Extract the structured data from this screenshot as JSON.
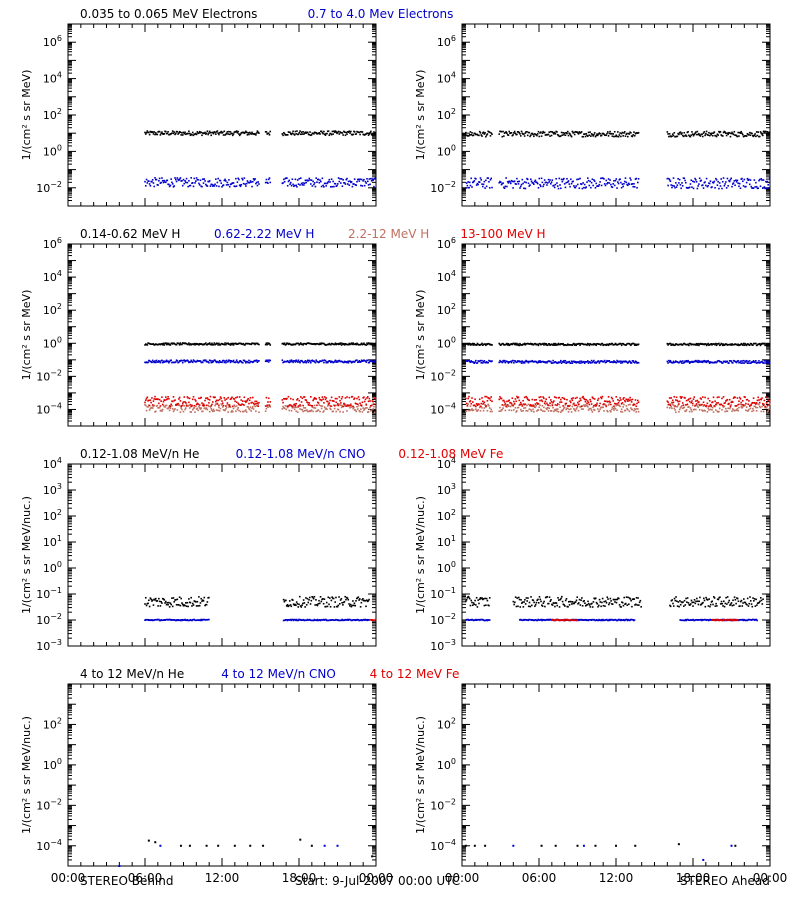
{
  "footer": {
    "left_label": "STEREO Behind",
    "center_label": "Start:  9-Jul-2007 00:00 UTC",
    "right_label": "STEREO Ahead"
  },
  "time_ticks": [
    "00:00",
    "06:00",
    "12:00",
    "18:00",
    "00:00"
  ],
  "colors": {
    "black": "#000000",
    "blue": "#0000cc",
    "brown": "#c07060",
    "red": "#e00000"
  },
  "chart_data": [
    {
      "id": "electrons",
      "type": "scatter",
      "ylabel": "1/(cm² s sr MeV)",
      "y_scale": "log",
      "ylim_exp": [
        -3,
        7
      ],
      "y_tick_exps": [
        -2,
        0,
        2,
        4,
        6
      ],
      "xlabel": "",
      "x_tick_labels": [
        "00:00",
        "06:00",
        "12:00",
        "18:00",
        "00:00"
      ],
      "legend": [
        {
          "text": "0.035 to 0.065 MeV Electrons",
          "color": "#000000"
        },
        {
          "text": "0.7 to 4.0 Mev Electrons",
          "color": "#0000cc"
        }
      ],
      "panels": [
        {
          "spacecraft": "STEREO Behind",
          "series": [
            {
              "name": "0.035 to 0.065 MeV Electrons",
              "color": "#000000",
              "typical_value": 10,
              "spread_exp": 0.12,
              "segments_hours": [
                [
                  6.0,
                  14.9
                ],
                [
                  15.4,
                  15.8
                ],
                [
                  16.7,
                  24.0
                ]
              ]
            },
            {
              "name": "0.7 to 4.0 Mev Electrons",
              "color": "#0000cc",
              "typical_value": 0.02,
              "spread_exp": 0.25,
              "segments_hours": [
                [
                  6.0,
                  14.9
                ],
                [
                  15.4,
                  15.8
                ],
                [
                  16.7,
                  24.0
                ]
              ]
            }
          ]
        },
        {
          "spacecraft": "STEREO Ahead",
          "series": [
            {
              "name": "0.035 to 0.065 MeV Electrons",
              "color": "#000000",
              "typical_value": 9,
              "spread_exp": 0.15,
              "segments_hours": [
                [
                  0.3,
                  2.4
                ],
                [
                  2.9,
                  13.8
                ],
                [
                  16.0,
                  24.0
                ]
              ]
            },
            {
              "name": "0.7 to 4.0 Mev Electrons",
              "color": "#0000cc",
              "typical_value": 0.018,
              "spread_exp": 0.3,
              "segments_hours": [
                [
                  0.3,
                  2.4
                ],
                [
                  2.9,
                  13.8
                ],
                [
                  16.0,
                  24.0
                ]
              ]
            }
          ]
        }
      ]
    },
    {
      "id": "protons",
      "type": "scatter",
      "ylabel": "1/(cm² s sr MeV)",
      "y_scale": "log",
      "ylim_exp": [
        -5,
        6
      ],
      "y_tick_exps": [
        -4,
        -2,
        0,
        2,
        4,
        6
      ],
      "xlabel": "",
      "x_tick_labels": [
        "00:00",
        "06:00",
        "12:00",
        "18:00",
        "00:00"
      ],
      "legend": [
        {
          "text": "0.14-0.62 MeV H",
          "color": "#000000"
        },
        {
          "text": "0.62-2.22 MeV H",
          "color": "#0000cc"
        },
        {
          "text": "2.2-12 MeV H",
          "color": "#c07060"
        },
        {
          "text": "13-100 MeV H",
          "color": "#e00000"
        }
      ],
      "panels": [
        {
          "spacecraft": "STEREO Behind",
          "series": [
            {
              "name": "0.14-0.62 MeV H",
              "color": "#000000",
              "typical_value": 0.9,
              "spread_exp": 0.06,
              "segments_hours": [
                [
                  6.0,
                  14.9
                ],
                [
                  15.4,
                  15.8
                ],
                [
                  16.7,
                  24.0
                ]
              ]
            },
            {
              "name": "0.62-2.22 MeV H",
              "color": "#0000cc",
              "typical_value": 0.08,
              "spread_exp": 0.08,
              "segments_hours": [
                [
                  6.0,
                  14.9
                ],
                [
                  15.4,
                  15.8
                ],
                [
                  16.7,
                  24.0
                ]
              ]
            },
            {
              "name": "2.2-12 MeV H",
              "color": "#c07060",
              "typical_value": 0.00012,
              "spread_exp": 0.25,
              "segments_hours": [
                [
                  6.0,
                  14.9
                ],
                [
                  15.4,
                  15.8
                ],
                [
                  16.7,
                  24.0
                ]
              ]
            },
            {
              "name": "13-100 MeV H",
              "color": "#e00000",
              "typical_value": 0.0003,
              "spread_exp": 0.3,
              "segments_hours": [
                [
                  6.0,
                  14.9
                ],
                [
                  15.4,
                  15.8
                ],
                [
                  16.7,
                  24.0
                ]
              ]
            }
          ]
        },
        {
          "spacecraft": "STEREO Ahead",
          "series": [
            {
              "name": "0.14-0.62 MeV H",
              "color": "#000000",
              "typical_value": 0.85,
              "spread_exp": 0.06,
              "segments_hours": [
                [
                  0.3,
                  2.4
                ],
                [
                  2.9,
                  13.8
                ],
                [
                  16.0,
                  24.0
                ]
              ]
            },
            {
              "name": "0.62-2.22 MeV H",
              "color": "#0000cc",
              "typical_value": 0.075,
              "spread_exp": 0.08,
              "segments_hours": [
                [
                  0.3,
                  2.4
                ],
                [
                  2.9,
                  13.8
                ],
                [
                  16.0,
                  24.0
                ]
              ]
            },
            {
              "name": "2.2-12 MeV H",
              "color": "#c07060",
              "typical_value": 0.00012,
              "spread_exp": 0.25,
              "segments_hours": [
                [
                  0.3,
                  2.4
                ],
                [
                  2.9,
                  13.8
                ],
                [
                  16.0,
                  24.0
                ]
              ]
            },
            {
              "name": "13-100 MeV H",
              "color": "#e00000",
              "typical_value": 0.0003,
              "spread_exp": 0.3,
              "segments_hours": [
                [
                  0.3,
                  2.4
                ],
                [
                  2.9,
                  13.8
                ],
                [
                  16.0,
                  24.0
                ]
              ]
            }
          ]
        }
      ]
    },
    {
      "id": "heavy_low",
      "type": "scatter",
      "ylabel": "1/(cm² s sr MeV/nuc.)",
      "y_scale": "log",
      "ylim_exp": [
        -3,
        4
      ],
      "y_tick_exps": [
        -3,
        -2,
        -1,
        0,
        1,
        2,
        3,
        4
      ],
      "xlabel": "",
      "x_tick_labels": [
        "00:00",
        "06:00",
        "12:00",
        "18:00",
        "00:00"
      ],
      "legend": [
        {
          "text": "0.12-1.08 MeV/n He",
          "color": "#000000"
        },
        {
          "text": "0.12-1.08 MeV/n CNO",
          "color": "#0000cc"
        },
        {
          "text": "0.12-1.08 MeV Fe",
          "color": "#e00000"
        }
      ],
      "panels": [
        {
          "spacecraft": "STEREO Behind",
          "series": [
            {
              "name": "0.12-1.08 MeV/n He",
              "color": "#000000",
              "typical_value": 0.05,
              "spread_exp": 0.2,
              "segments_hours": [
                [
                  6.0,
                  11.0
                ],
                [
                  16.8,
                  23.5
                ]
              ]
            },
            {
              "name": "0.12-1.08 MeV/n CNO",
              "color": "#0000cc",
              "typical_value": 0.01,
              "spread_exp": 0.02,
              "segments_hours": [
                [
                  6.0,
                  11.0
                ],
                [
                  16.8,
                  23.5
                ]
              ]
            },
            {
              "name": "0.12-1.08 MeV Fe",
              "color": "#e00000",
              "typical_value": 0.01,
              "spread_exp": 0.02,
              "segments_hours": [
                [
                  23.6,
                  24.0
                ]
              ]
            }
          ]
        },
        {
          "spacecraft": "STEREO Ahead",
          "series": [
            {
              "name": "0.12-1.08 MeV/n He",
              "color": "#000000",
              "typical_value": 0.05,
              "spread_exp": 0.2,
              "segments_hours": [
                [
                  0.3,
                  2.2
                ],
                [
                  4.0,
                  14.0
                ],
                [
                  16.2,
                  23.5
                ]
              ]
            },
            {
              "name": "0.12-1.08 MeV/n CNO",
              "color": "#0000cc",
              "typical_value": 0.01,
              "spread_exp": 0.02,
              "segments_hours": [
                [
                  0.3,
                  2.2
                ],
                [
                  4.5,
                  13.5
                ],
                [
                  17.0,
                  23.0
                ]
              ]
            },
            {
              "name": "0.12-1.08 MeV Fe",
              "color": "#e00000",
              "typical_value": 0.01,
              "spread_exp": 0.02,
              "segments_hours": [
                [
                  7.0,
                  9.0
                ],
                [
                  19.5,
                  21.5
                ]
              ]
            }
          ]
        }
      ]
    },
    {
      "id": "heavy_high",
      "type": "scatter",
      "ylabel": "1/(cm² s sr MeV/nuc.)",
      "y_scale": "log",
      "ylim_exp": [
        -5,
        4
      ],
      "y_tick_exps": [
        -4,
        -2,
        0,
        2
      ],
      "xlabel": "",
      "x_tick_labels": [
        "00:00",
        "06:00",
        "12:00",
        "18:00",
        "00:00"
      ],
      "legend": [
        {
          "text": "4 to 12 MeV/n He",
          "color": "#000000"
        },
        {
          "text": "4 to 12 MeV/n CNO",
          "color": "#0000cc"
        },
        {
          "text": "4 to 12 MeV Fe",
          "color": "#e00000"
        }
      ],
      "panels": [
        {
          "spacecraft": "STEREO Behind",
          "series": [
            {
              "name": "4 to 12 MeV/n He",
              "color": "#000000",
              "points": [
                [
                  6.3,
                  0.00018
                ],
                [
                  6.8,
                  0.00015
                ],
                [
                  8.8,
                  0.0001
                ],
                [
                  9.5,
                  0.0001
                ],
                [
                  10.8,
                  0.0001
                ],
                [
                  11.7,
                  0.0001
                ],
                [
                  13.0,
                  0.0001
                ],
                [
                  14.2,
                  0.0001
                ],
                [
                  15.2,
                  0.0001
                ],
                [
                  18.1,
                  0.0002
                ],
                [
                  19.0,
                  0.0001
                ],
                [
                  23.7,
                  3e-05
                ]
              ]
            },
            {
              "name": "4 to 12 MeV/n CNO",
              "color": "#0000cc",
              "points": [
                [
                  7.2,
                  0.0001
                ],
                [
                  20.0,
                  0.0001
                ],
                [
                  21.0,
                  0.0001
                ],
                [
                  4.0,
                  1e-05
                ]
              ]
            },
            {
              "name": "4 to 12 MeV Fe",
              "color": "#e00000",
              "points": []
            }
          ]
        },
        {
          "spacecraft": "STEREO Ahead",
          "series": [
            {
              "name": "4 to 12 MeV/n He",
              "color": "#000000",
              "points": [
                [
                  0.3,
                  0.0001
                ],
                [
                  1.0,
                  0.0001
                ],
                [
                  1.8,
                  0.0001
                ],
                [
                  6.2,
                  0.0001
                ],
                [
                  7.3,
                  0.0001
                ],
                [
                  9.0,
                  0.0001
                ],
                [
                  10.4,
                  0.0001
                ],
                [
                  12.0,
                  0.0001
                ],
                [
                  13.5,
                  0.0001
                ],
                [
                  16.9,
                  0.00012
                ],
                [
                  21.3,
                  0.0001
                ]
              ]
            },
            {
              "name": "4 to 12 MeV/n CNO",
              "color": "#0000cc",
              "points": [
                [
                  4.0,
                  0.0001
                ],
                [
                  9.5,
                  0.0001
                ],
                [
                  18.8,
                  2e-05
                ],
                [
                  21.0,
                  0.0001
                ]
              ]
            },
            {
              "name": "4 to 12 MeV Fe",
              "color": "#e00000",
              "points": []
            }
          ]
        }
      ]
    }
  ]
}
